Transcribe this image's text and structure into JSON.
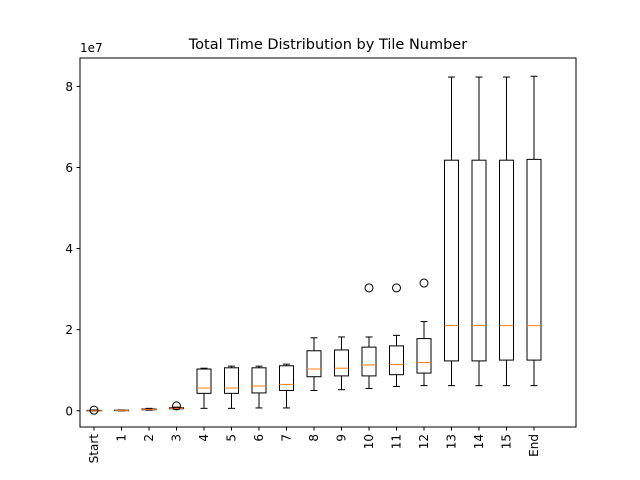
{
  "chart_data": {
    "type": "box",
    "title": "Total Time Distribution by Tile Number",
    "xlabel": "",
    "ylabel": "",
    "y_offset_label": "1e7",
    "y_scale_factor": 10000000,
    "ylim": [
      -4000000,
      87000000
    ],
    "yticks": [
      0,
      20000000,
      40000000,
      60000000,
      80000000
    ],
    "ytick_labels": [
      "0",
      "2",
      "4",
      "6",
      "8"
    ],
    "categories": [
      "Start",
      "1",
      "2",
      "3",
      "4",
      "5",
      "6",
      "7",
      "8",
      "9",
      "10",
      "11",
      "12",
      "13",
      "14",
      "15",
      "End"
    ],
    "boxes": [
      {
        "label": "Start",
        "whislo": 0,
        "q1": 0,
        "med": 0,
        "q3": 100000,
        "whishi": 200000,
        "fliers": [
          150000
        ]
      },
      {
        "label": "1",
        "whislo": 0,
        "q1": 50000,
        "med": 100000,
        "q3": 150000,
        "whishi": 200000,
        "fliers": []
      },
      {
        "label": "2",
        "whislo": 150000,
        "q1": 250000,
        "med": 350000,
        "q3": 450000,
        "whishi": 600000,
        "fliers": []
      },
      {
        "label": "3",
        "whislo": 400000,
        "q1": 500000,
        "med": 600000,
        "q3": 750000,
        "whishi": 900000,
        "fliers": [
          1200000
        ]
      },
      {
        "label": "4",
        "whislo": 600000,
        "q1": 4300000,
        "med": 5600000,
        "q3": 10300000,
        "whishi": 10500000,
        "fliers": []
      },
      {
        "label": "5",
        "whislo": 600000,
        "q1": 4300000,
        "med": 5600000,
        "q3": 10600000,
        "whishi": 11000000,
        "fliers": []
      },
      {
        "label": "6",
        "whislo": 700000,
        "q1": 4400000,
        "med": 6100000,
        "q3": 10600000,
        "whishi": 11000000,
        "fliers": []
      },
      {
        "label": "7",
        "whislo": 700000,
        "q1": 5000000,
        "med": 6500000,
        "q3": 11100000,
        "whishi": 11500000,
        "fliers": []
      },
      {
        "label": "8",
        "whislo": 5000000,
        "q1": 8400000,
        "med": 10300000,
        "q3": 14800000,
        "whishi": 18000000,
        "fliers": []
      },
      {
        "label": "9",
        "whislo": 5200000,
        "q1": 8600000,
        "med": 10500000,
        "q3": 15000000,
        "whishi": 18200000,
        "fliers": []
      },
      {
        "label": "10",
        "whislo": 5500000,
        "q1": 8600000,
        "med": 11300000,
        "q3": 15700000,
        "whishi": 18200000,
        "fliers": [
          30300000
        ]
      },
      {
        "label": "11",
        "whislo": 6000000,
        "q1": 8900000,
        "med": 11400000,
        "q3": 16000000,
        "whishi": 18600000,
        "fliers": [
          30300000
        ]
      },
      {
        "label": "12",
        "whislo": 6200000,
        "q1": 9300000,
        "med": 11900000,
        "q3": 17800000,
        "whishi": 22000000,
        "fliers": [
          31500000
        ]
      },
      {
        "label": "13",
        "whislo": 6200000,
        "q1": 12300000,
        "med": 21000000,
        "q3": 61800000,
        "whishi": 82300000,
        "fliers": []
      },
      {
        "label": "14",
        "whislo": 6200000,
        "q1": 12300000,
        "med": 21000000,
        "q3": 61800000,
        "whishi": 82300000,
        "fliers": []
      },
      {
        "label": "15",
        "whislo": 6200000,
        "q1": 12500000,
        "med": 21000000,
        "q3": 61800000,
        "whishi": 82300000,
        "fliers": []
      },
      {
        "label": "End",
        "whislo": 6200000,
        "q1": 12500000,
        "med": 21000000,
        "q3": 62000000,
        "whishi": 82500000,
        "fliers": []
      }
    ],
    "box_color": "#000000",
    "median_color": "#ff7f0e",
    "grid": false,
    "legend": "none"
  }
}
